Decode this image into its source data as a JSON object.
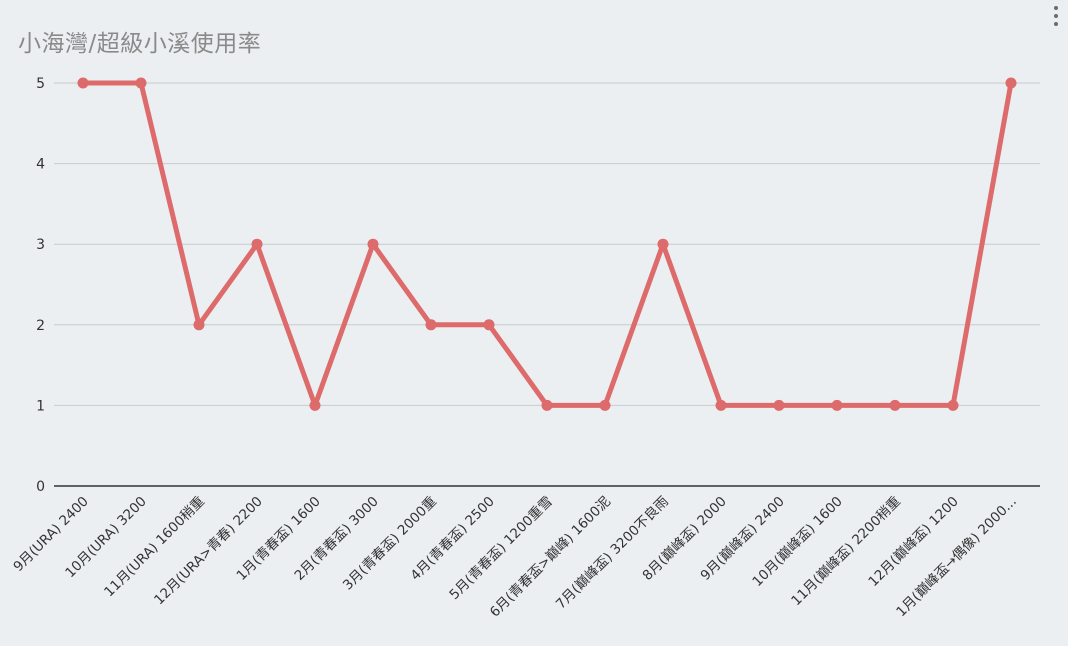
{
  "title": "小海灣/超級小溪使用率",
  "menu_icon": "more-vertical-icon",
  "colors": {
    "series": "#dd6b6b",
    "grid": "#c8cbcd",
    "axis": "#333333",
    "text": "#333333"
  },
  "chart_data": {
    "type": "line",
    "title": "小海灣/超級小溪使用率",
    "xlabel": "",
    "ylabel": "",
    "ylim": [
      0,
      5
    ],
    "yticks": [
      0,
      1,
      2,
      3,
      4,
      5
    ],
    "grid": true,
    "legend": "none",
    "categories": [
      "9月(URA) 2400",
      "10月(URA) 3200",
      "11月(URA) 1600稍重",
      "12月(URA>青春) 2200",
      "1月(青春盃) 1600",
      "2月(青春盃) 3000",
      "3月(青春盃) 2000重",
      "4月(青春盃) 2500",
      "5月(青春盃) 1200重雪",
      "6月(青春盃>巔峰) 1600泥",
      "7月(巔峰盃) 3200不良雨",
      "8月(巔峰盃) 2000",
      "9月(巔峰盃) 2400",
      "10月(巔峰盃) 1600",
      "11月(巔峰盃) 2200稍重",
      "12月(巔峰盃) 1200",
      "1月(巔峰盃→偶像) 2000..."
    ],
    "series": [
      {
        "values": [
          5,
          5,
          2,
          3,
          1,
          3,
          2,
          2,
          1,
          1,
          3,
          1,
          1,
          1,
          1,
          1,
          5
        ]
      }
    ]
  }
}
